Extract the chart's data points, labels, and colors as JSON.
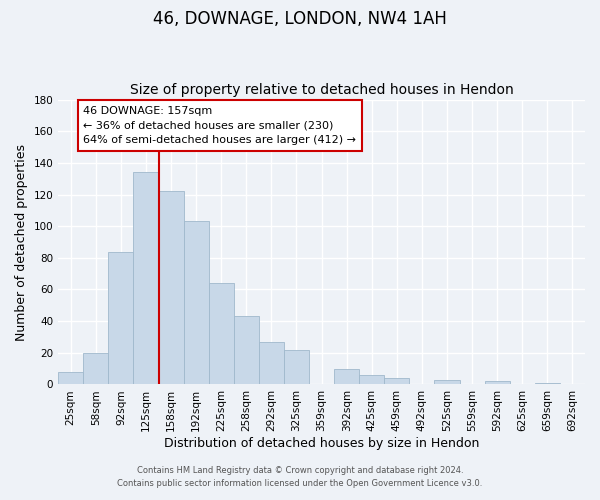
{
  "title": "46, DOWNAGE, LONDON, NW4 1AH",
  "subtitle": "Size of property relative to detached houses in Hendon",
  "xlabel": "Distribution of detached houses by size in Hendon",
  "ylabel": "Number of detached properties",
  "footnote1": "Contains HM Land Registry data © Crown copyright and database right 2024.",
  "footnote2": "Contains public sector information licensed under the Open Government Licence v3.0.",
  "bar_labels": [
    "25sqm",
    "58sqm",
    "92sqm",
    "125sqm",
    "158sqm",
    "192sqm",
    "225sqm",
    "258sqm",
    "292sqm",
    "325sqm",
    "359sqm",
    "392sqm",
    "425sqm",
    "459sqm",
    "492sqm",
    "525sqm",
    "559sqm",
    "592sqm",
    "625sqm",
    "659sqm",
    "692sqm"
  ],
  "bar_values": [
    8,
    20,
    84,
    134,
    122,
    103,
    64,
    43,
    27,
    22,
    0,
    10,
    6,
    4,
    0,
    3,
    0,
    2,
    0,
    1,
    0
  ],
  "bar_color": "#c8d8e8",
  "bar_edgecolor": "#a0b8cc",
  "ylim": [
    0,
    180
  ],
  "yticks": [
    0,
    20,
    40,
    60,
    80,
    100,
    120,
    140,
    160,
    180
  ],
  "vline_color": "#cc0000",
  "annotation_text": "46 DOWNAGE: 157sqm\n← 36% of detached houses are smaller (230)\n64% of semi-detached houses are larger (412) →",
  "annotation_box_color": "#ffffff",
  "annotation_box_edgecolor": "#cc0000",
  "background_color": "#eef2f7",
  "grid_color": "#ffffff",
  "title_fontsize": 12,
  "subtitle_fontsize": 10,
  "label_fontsize": 9,
  "tick_fontsize": 7.5,
  "annot_fontsize": 8
}
